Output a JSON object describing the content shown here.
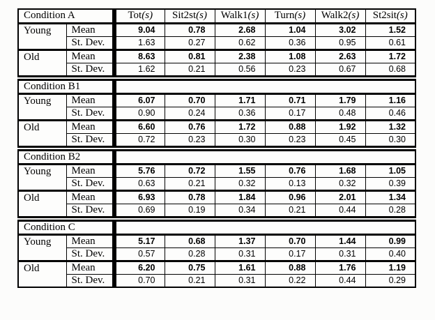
{
  "table": {
    "columns": [
      "Tot",
      "Sit2st",
      "Walk1",
      "Turn",
      "Walk2",
      "St2sit"
    ],
    "unit": "(s)",
    "labels": {
      "mean": "Mean",
      "stdev": "St. Dev."
    },
    "sections": [
      {
        "condition": "Condition A",
        "show_column_headers": true,
        "groups": [
          {
            "label": "Young",
            "mean": [
              "9.04",
              "0.78",
              "2.68",
              "1.04",
              "3.02",
              "1.52"
            ],
            "stdev": [
              "1.63",
              "0.27",
              "0.62",
              "0.36",
              "0.95",
              "0.61"
            ]
          },
          {
            "label": "Old",
            "mean": [
              "8.63",
              "0.81",
              "2.38",
              "1.08",
              "2.63",
              "1.72"
            ],
            "stdev": [
              "1.62",
              "0.21",
              "0.56",
              "0.23",
              "0.67",
              "0.68"
            ]
          }
        ]
      },
      {
        "condition": "Condition B1",
        "show_column_headers": false,
        "groups": [
          {
            "label": "Young",
            "mean": [
              "6.07",
              "0.70",
              "1.71",
              "0.71",
              "1.79",
              "1.16"
            ],
            "stdev": [
              "0.90",
              "0.24",
              "0.36",
              "0.17",
              "0.48",
              "0.46"
            ]
          },
          {
            "label": "Old",
            "mean": [
              "6.60",
              "0.76",
              "1.72",
              "0.88",
              "1.92",
              "1.32"
            ],
            "stdev": [
              "0.72",
              "0.23",
              "0.30",
              "0.23",
              "0.45",
              "0.30"
            ]
          }
        ]
      },
      {
        "condition": "Condition B2",
        "show_column_headers": false,
        "groups": [
          {
            "label": "Young",
            "mean": [
              "5.76",
              "0.72",
              "1.55",
              "0.76",
              "1.68",
              "1.05"
            ],
            "stdev": [
              "0.63",
              "0.21",
              "0.32",
              "0.13",
              "0.32",
              "0.39"
            ]
          },
          {
            "label": "Old",
            "mean": [
              "6.93",
              "0.78",
              "1.84",
              "0.96",
              "2.01",
              "1.34"
            ],
            "stdev": [
              "0.69",
              "0.19",
              "0.34",
              "0.21",
              "0.44",
              "0.28"
            ]
          }
        ]
      },
      {
        "condition": "Condition C",
        "show_column_headers": false,
        "groups": [
          {
            "label": "Young",
            "mean": [
              "5.17",
              "0.68",
              "1.37",
              "0.70",
              "1.44",
              "0.99"
            ],
            "stdev": [
              "0.57",
              "0.28",
              "0.31",
              "0.17",
              "0.31",
              "0.40"
            ]
          },
          {
            "label": "Old",
            "mean": [
              "6.20",
              "0.75",
              "1.61",
              "0.88",
              "1.76",
              "1.19"
            ],
            "stdev": [
              "0.70",
              "0.21",
              "0.31",
              "0.22",
              "0.44",
              "0.29"
            ]
          }
        ]
      }
    ]
  }
}
